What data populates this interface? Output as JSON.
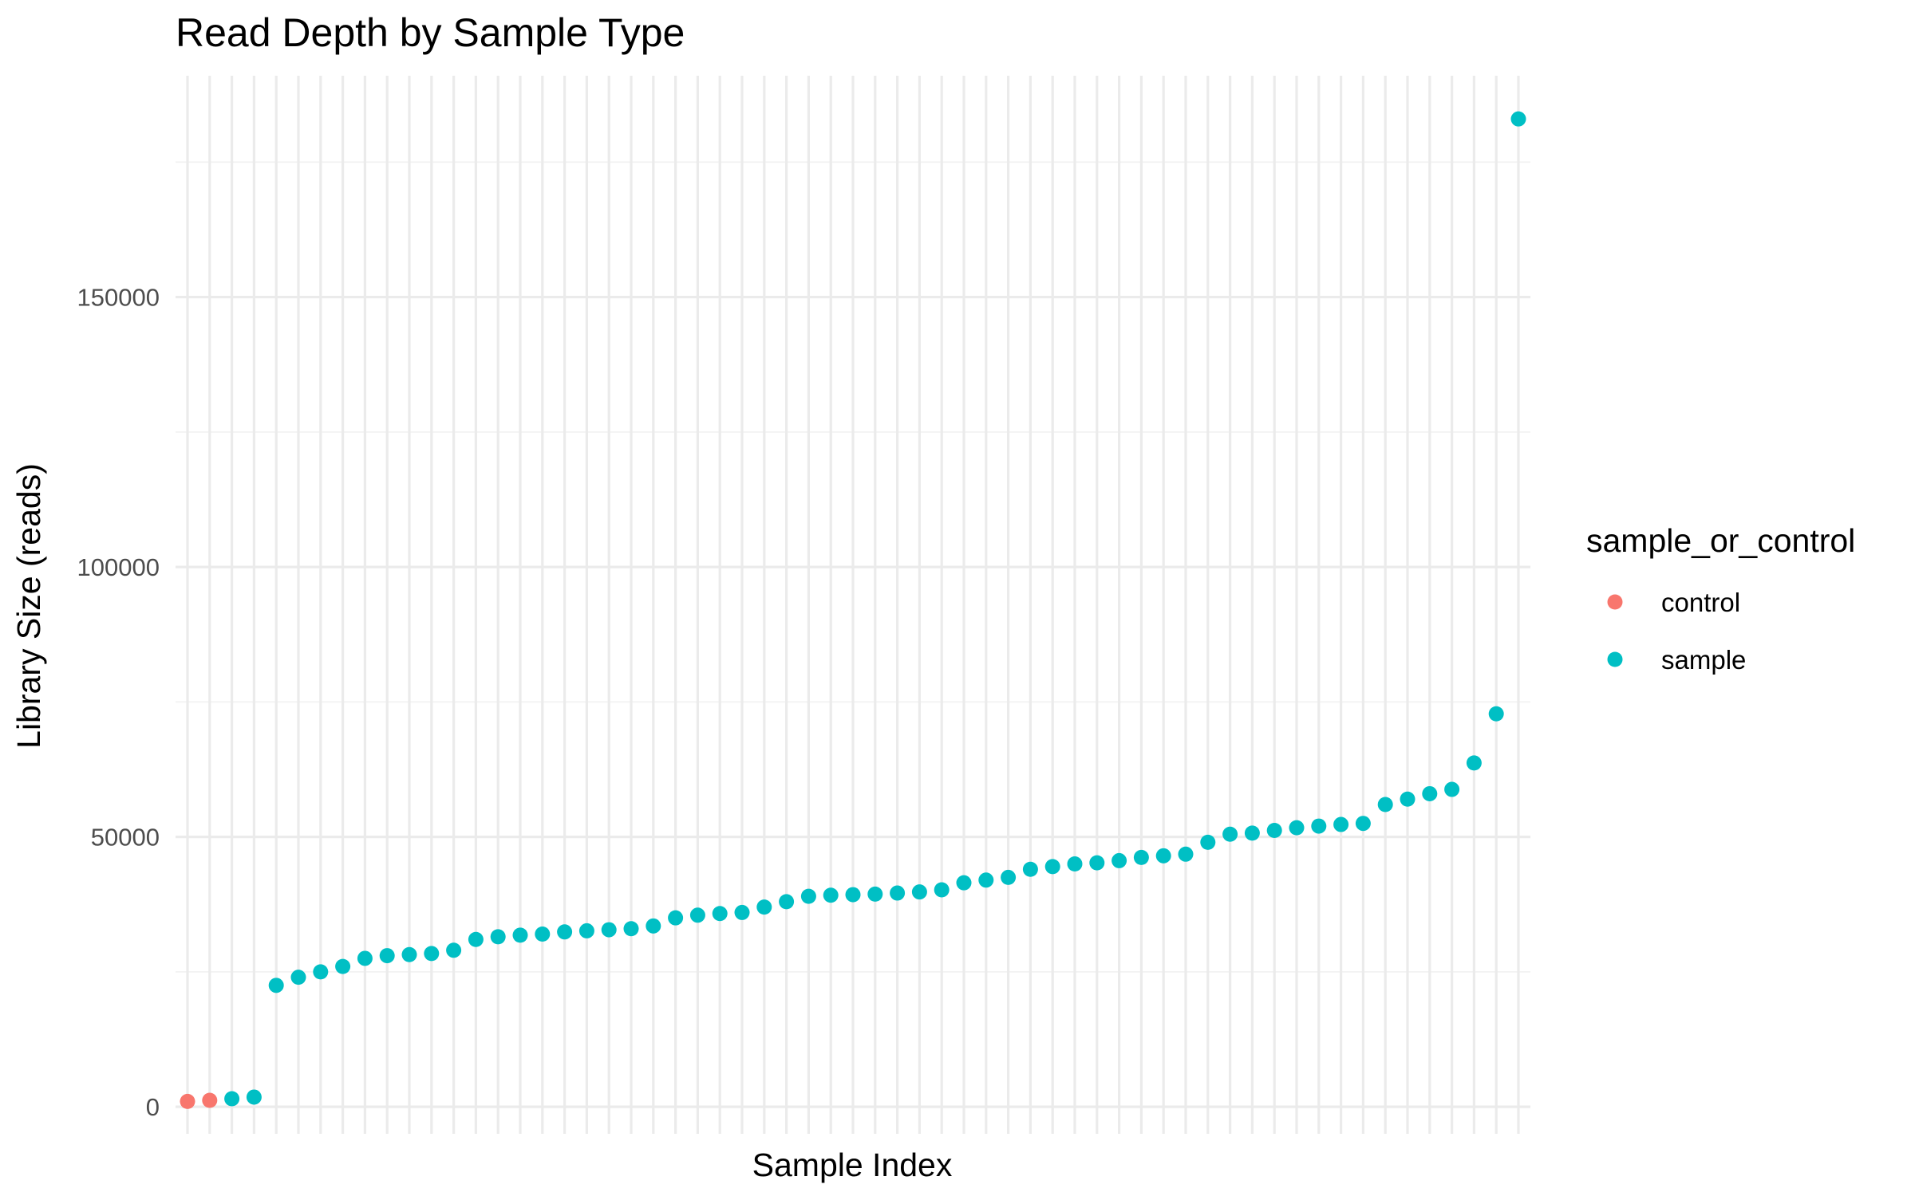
{
  "chart_data": {
    "type": "scatter",
    "title": "Read Depth by Sample Type",
    "xlabel": "Sample Index",
    "ylabel": "Library Size (reads)",
    "ylim": [
      -5000,
      191000
    ],
    "yticks": [
      0,
      50000,
      100000,
      150000
    ],
    "ytick_labels": [
      "0",
      "50000",
      "100000",
      "150000"
    ],
    "x_tick_labels_shown": false,
    "grid": true,
    "legend": {
      "title": "sample_or_control",
      "position": "right",
      "entries": [
        {
          "name": "control",
          "color": "#f8766d"
        },
        {
          "name": "sample",
          "color": "#00bfc4"
        }
      ]
    },
    "series": [
      {
        "name": "control",
        "color": "#f8766d",
        "x": [
          1,
          2
        ],
        "y": [
          1000,
          1200
        ]
      },
      {
        "name": "sample",
        "color": "#00bfc4",
        "x": [
          3,
          4,
          5,
          6,
          7,
          8,
          9,
          10,
          11,
          12,
          13,
          14,
          15,
          16,
          17,
          18,
          19,
          20,
          21,
          22,
          23,
          24,
          25,
          26,
          27,
          28,
          29,
          30,
          31,
          32,
          33,
          34,
          35,
          36,
          37,
          38,
          39,
          40,
          41,
          42,
          43,
          44,
          45,
          46,
          47,
          48,
          49,
          50,
          51,
          52,
          53,
          54,
          55,
          56,
          57,
          58,
          59,
          60,
          61
        ],
        "y": [
          1500,
          1800,
          22500,
          24000,
          25000,
          26000,
          27500,
          28000,
          28200,
          28400,
          29000,
          31000,
          31500,
          31800,
          32000,
          32400,
          32600,
          32800,
          33000,
          33500,
          35000,
          35500,
          35800,
          36000,
          37000,
          38000,
          39000,
          39200,
          39300,
          39400,
          39600,
          39800,
          40200,
          41500,
          42000,
          42500,
          44000,
          44500,
          45000,
          45200,
          45600,
          46200,
          46500,
          46800,
          49000,
          50500,
          50700,
          51200,
          51700,
          52000,
          52300,
          52500,
          56000,
          57000,
          58000,
          58800,
          63700,
          72800,
          183000
        ]
      }
    ]
  }
}
